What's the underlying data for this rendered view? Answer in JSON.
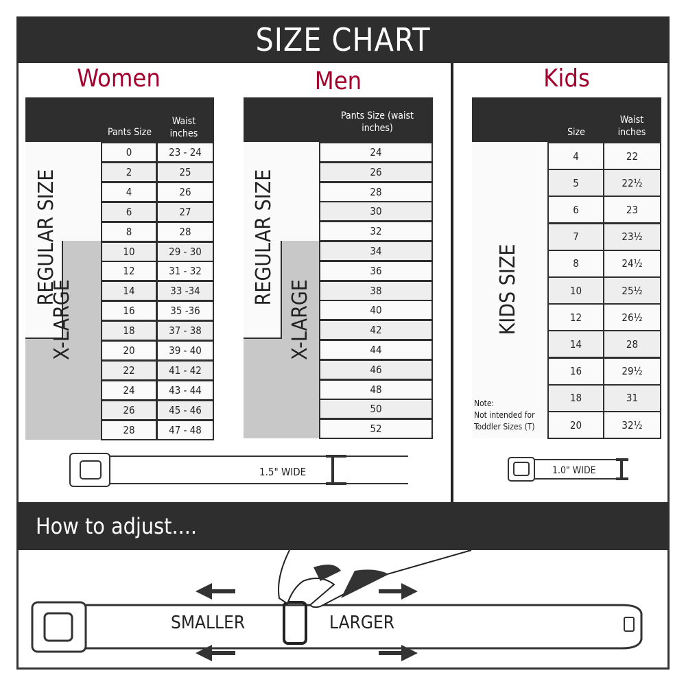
{
  "title": "SIZE CHART",
  "colors": {
    "accent": "#a3002e",
    "dark": "#2e2e2e",
    "xlarge_gray": "#c8c8c8"
  },
  "women": {
    "title": "Women",
    "col1": "Pants Size",
    "col2": "Waist inches",
    "regular_label": "REGULAR SIZE",
    "xlarge_label": "X-LARGE",
    "rows": [
      [
        "0",
        "23 - 24"
      ],
      [
        "2",
        "25"
      ],
      [
        "4",
        "26"
      ],
      [
        "6",
        "27"
      ],
      [
        "8",
        "28"
      ],
      [
        "10",
        "29 - 30"
      ],
      [
        "12",
        "31 - 32"
      ],
      [
        "14",
        "33 -34"
      ],
      [
        "16",
        "35 -36"
      ],
      [
        "18",
        "37 - 38"
      ],
      [
        "20",
        "39 - 40"
      ],
      [
        "22",
        "41 - 42"
      ],
      [
        "24",
        "43 - 44"
      ],
      [
        "26",
        "45 - 46"
      ],
      [
        "28",
        "47 - 48"
      ]
    ]
  },
  "men": {
    "title": "Men",
    "col1": "Pants Size (waist inches)",
    "regular_label": "REGULAR SIZE",
    "xlarge_label": "X-LARGE",
    "rows": [
      "24",
      "26",
      "28",
      "30",
      "32",
      "34",
      "36",
      "38",
      "40",
      "42",
      "44",
      "46",
      "48",
      "50",
      "52"
    ]
  },
  "kids": {
    "title": "Kids",
    "col1": "Size",
    "col2": "Waist inches",
    "label": "KIDS SIZE",
    "note_title": "Note:",
    "note": "Not intended for Toddler Sizes (T)",
    "rows": [
      [
        "4",
        "22"
      ],
      [
        "5",
        "22½"
      ],
      [
        "6",
        "23"
      ],
      [
        "7",
        "23½"
      ],
      [
        "8",
        "24½"
      ],
      [
        "10",
        "25½"
      ],
      [
        "12",
        "26½"
      ],
      [
        "14",
        "28"
      ],
      [
        "16",
        "29½"
      ],
      [
        "18",
        "31"
      ],
      [
        "20",
        "32½"
      ]
    ]
  },
  "adult_belt_width": "1.5\" WIDE",
  "kids_belt_width": "1.0\" WIDE",
  "adjust": {
    "title": "How to adjust....",
    "smaller": "SMALLER",
    "larger": "LARGER"
  }
}
